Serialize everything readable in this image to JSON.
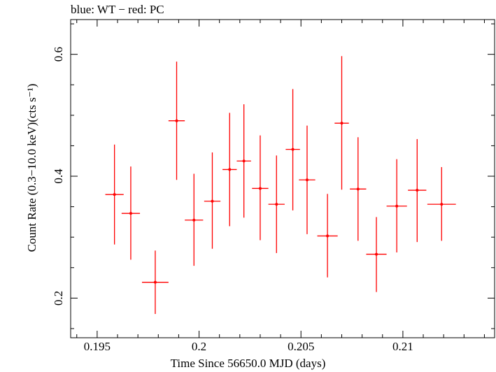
{
  "chart_data": {
    "type": "scatter",
    "title": "blue: WT − red: PC",
    "xlabel": "Time Since 56650.0 MJD (days)",
    "ylabel": "Count Rate (0.3−10.0 keV)(cts s⁻¹)",
    "xlim": [
      0.1937,
      0.2145
    ],
    "ylim": [
      0.135,
      0.657
    ],
    "x_ticks": [
      0.195,
      0.2,
      0.205,
      0.21
    ],
    "x_tick_labels": [
      "0.195",
      "0.2",
      "0.205",
      "0.21"
    ],
    "y_ticks": [
      0.2,
      0.4,
      0.6
    ],
    "y_tick_labels": [
      "0.2",
      "0.4",
      "0.6"
    ],
    "grid": false,
    "series": [
      {
        "color": "#ff0000",
        "points": [
          {
            "x": 0.19585,
            "y": 0.37,
            "xerr": 0.00045,
            "ylo": 0.288,
            "yhi": 0.452
          },
          {
            "x": 0.19665,
            "y": 0.339,
            "xerr": 0.00045,
            "ylo": 0.263,
            "yhi": 0.416
          },
          {
            "x": 0.19785,
            "y": 0.226,
            "xerr": 0.00065,
            "ylo": 0.174,
            "yhi": 0.278
          },
          {
            "x": 0.1989,
            "y": 0.491,
            "xerr": 0.0004,
            "ylo": 0.394,
            "yhi": 0.588
          },
          {
            "x": 0.19975,
            "y": 0.328,
            "xerr": 0.00045,
            "ylo": 0.253,
            "yhi": 0.404
          },
          {
            "x": 0.20065,
            "y": 0.359,
            "xerr": 0.0004,
            "ylo": 0.281,
            "yhi": 0.439
          },
          {
            "x": 0.2015,
            "y": 0.411,
            "xerr": 0.00035,
            "ylo": 0.318,
            "yhi": 0.504
          },
          {
            "x": 0.2022,
            "y": 0.425,
            "xerr": 0.00035,
            "ylo": 0.332,
            "yhi": 0.518
          },
          {
            "x": 0.203,
            "y": 0.38,
            "xerr": 0.0004,
            "ylo": 0.295,
            "yhi": 0.467
          },
          {
            "x": 0.2038,
            "y": 0.354,
            "xerr": 0.0004,
            "ylo": 0.274,
            "yhi": 0.434
          },
          {
            "x": 0.2046,
            "y": 0.444,
            "xerr": 0.00035,
            "ylo": 0.344,
            "yhi": 0.543
          },
          {
            "x": 0.2053,
            "y": 0.394,
            "xerr": 0.0004,
            "ylo": 0.305,
            "yhi": 0.483
          },
          {
            "x": 0.2063,
            "y": 0.302,
            "xerr": 0.0005,
            "ylo": 0.234,
            "yhi": 0.371
          },
          {
            "x": 0.207,
            "y": 0.487,
            "xerr": 0.00035,
            "ylo": 0.378,
            "yhi": 0.597
          },
          {
            "x": 0.2078,
            "y": 0.379,
            "xerr": 0.0004,
            "ylo": 0.294,
            "yhi": 0.464
          },
          {
            "x": 0.2087,
            "y": 0.272,
            "xerr": 0.0005,
            "ylo": 0.21,
            "yhi": 0.333
          },
          {
            "x": 0.2097,
            "y": 0.351,
            "xerr": 0.0005,
            "ylo": 0.275,
            "yhi": 0.428
          },
          {
            "x": 0.2107,
            "y": 0.377,
            "xerr": 0.00045,
            "ylo": 0.292,
            "yhi": 0.461
          },
          {
            "x": 0.2119,
            "y": 0.354,
            "xerr": 0.0007,
            "ylo": 0.294,
            "yhi": 0.415
          }
        ]
      }
    ]
  }
}
